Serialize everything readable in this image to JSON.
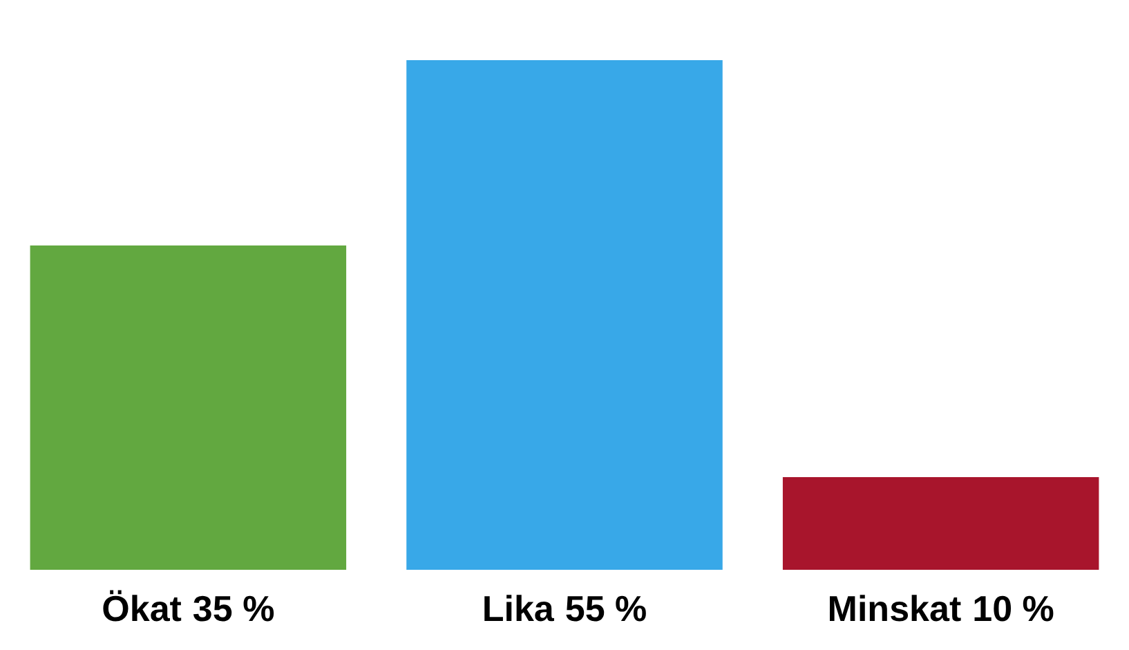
{
  "chart_data": {
    "type": "bar",
    "categories": [
      "Ökat",
      "Lika",
      "Minskat"
    ],
    "values": [
      35,
      55,
      10
    ],
    "value_labels": [
      "35 %",
      "55 %",
      "10 %"
    ],
    "colors": [
      "#62a840",
      "#38a8e8",
      "#a8152c"
    ]
  }
}
